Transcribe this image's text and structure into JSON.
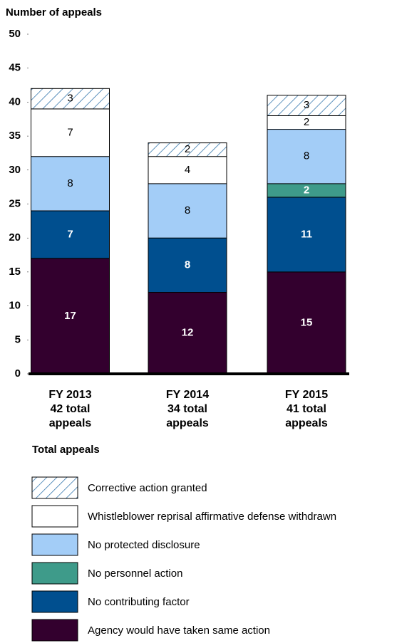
{
  "chart_data": {
    "type": "stacked_bar",
    "y_label": "Number of appeals",
    "x_label": "Total appeals",
    "categories": [
      "FY 2013\n42 total\nappeals",
      "FY 2014\n34 total\nappeals",
      "FY 2015\n41 total\nappeals"
    ],
    "series": [
      {
        "name": "Agency would have taken same action",
        "color": "#33002e",
        "values": [
          17,
          12,
          15
        ]
      },
      {
        "name": "No contributing factor",
        "color": "#004f8f",
        "values": [
          7,
          8,
          11
        ]
      },
      {
        "name": "No personnel action",
        "color": "#3e9b8a",
        "values": [
          0,
          0,
          2
        ]
      },
      {
        "name": "No protected disclosure",
        "color": "#a3cdf7",
        "values": [
          8,
          8,
          8
        ]
      },
      {
        "name": "Whistleblower reprisal affirmative defense withdrawn",
        "color": "#ffffff",
        "values": [
          7,
          4,
          2
        ]
      },
      {
        "name": "Corrective action granted",
        "color": "#2a6fa8",
        "pattern": "hatch",
        "values": [
          3,
          2,
          3
        ]
      }
    ],
    "ylim": [
      0,
      50
    ],
    "yticks": [
      0,
      5,
      10,
      15,
      20,
      25,
      30,
      35,
      40,
      45,
      50
    ],
    "grid": false
  }
}
